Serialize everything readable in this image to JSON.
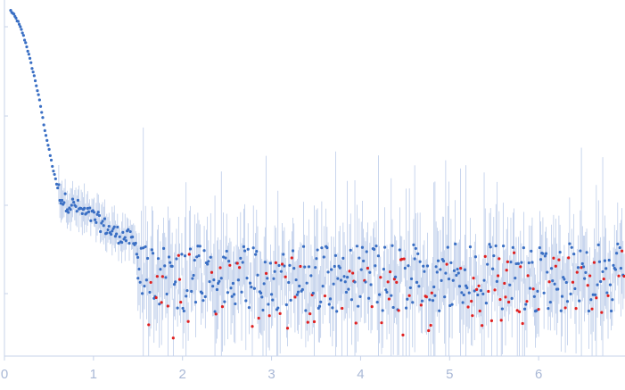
{
  "chart_data": {
    "type": "scatter",
    "title": "",
    "xlabel": "",
    "ylabel": "",
    "xlim": [
      0,
      6.97
    ],
    "ylim": [
      0,
      1
    ],
    "x_ticks": [
      "0",
      "1",
      "2",
      "3",
      "4",
      "5",
      "6"
    ],
    "y_ticks_labeled": false,
    "grid": false,
    "error_bars": true,
    "colors": {
      "points": "#3a6fc4",
      "outliers": "#e02020",
      "error_bars": "#9fb6e0",
      "axis": "#c7d3ea",
      "tick_text": "#a9b8d6"
    },
    "series": [
      {
        "type": "decay",
        "description_points": [
          [
            0.07,
            0.97
          ],
          [
            0.1,
            0.96
          ],
          [
            0.15,
            0.94
          ],
          [
            0.2,
            0.91
          ],
          [
            0.25,
            0.87
          ],
          [
            0.3,
            0.82
          ],
          [
            0.35,
            0.77
          ],
          [
            0.4,
            0.71
          ],
          [
            0.45,
            0.64
          ],
          [
            0.5,
            0.58
          ],
          [
            0.55,
            0.52
          ],
          [
            0.6,
            0.47
          ],
          [
            0.65,
            0.44
          ],
          [
            0.7,
            0.43
          ],
          [
            0.8,
            0.42
          ],
          [
            0.9,
            0.4
          ],
          [
            1.0,
            0.39
          ],
          [
            1.1,
            0.37
          ],
          [
            1.2,
            0.35
          ],
          [
            1.3,
            0.34
          ],
          [
            1.4,
            0.33
          ],
          [
            1.5,
            0.3
          ]
        ]
      },
      {
        "type": "noise",
        "x_range": [
          1.5,
          6.97
        ],
        "mean": 0.22,
        "spread": 0.08
      }
    ]
  }
}
